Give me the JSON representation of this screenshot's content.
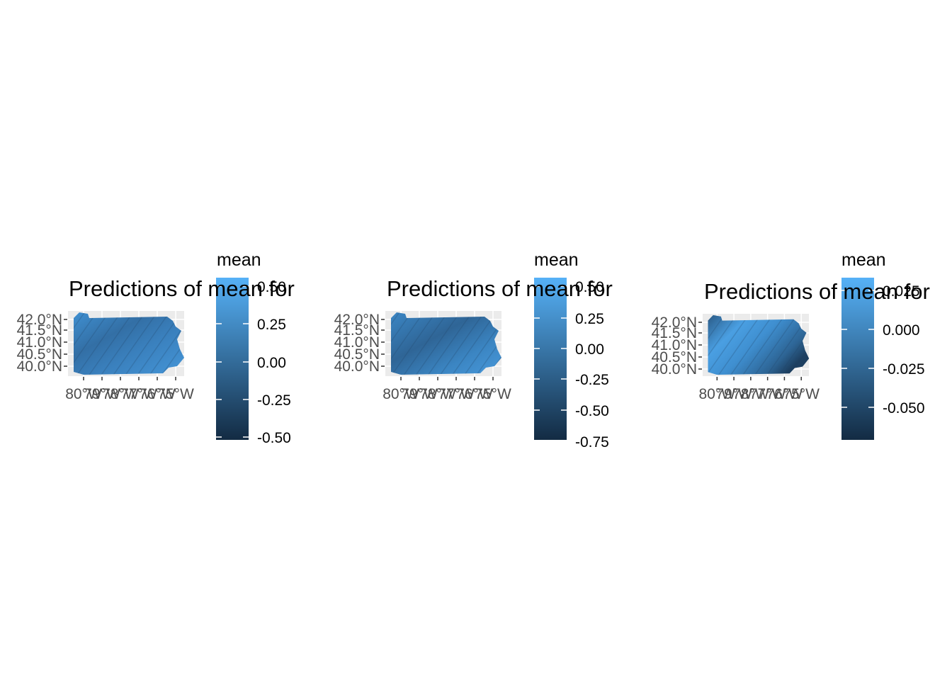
{
  "colors": {
    "gradient_high": "#56B1F7",
    "gradient_low": "#132B43",
    "panel_background": "#EBEBEB",
    "axis_text": "#4D4D4D"
  },
  "panels": [
    {
      "title": "Predictions of mean for",
      "legend_title": "mean",
      "legend_labels": [
        "0.50",
        "0.25",
        "0.00",
        "-0.25",
        "-0.50"
      ],
      "lat_labels": [
        "42.0°N",
        "41.5°N",
        "41.0°N",
        "40.5°N",
        "40.0°N"
      ],
      "lon_labels": [
        "80°W",
        "79°W",
        "78°W",
        "77°W",
        "76°W",
        "75°W"
      ]
    },
    {
      "title": "Predictions of mean for",
      "legend_title": "mean",
      "legend_labels": [
        "0.50",
        "0.25",
        "0.00",
        "-0.25",
        "-0.50",
        "-0.75"
      ],
      "lat_labels": [
        "42.0°N",
        "41.5°N",
        "41.0°N",
        "40.5°N",
        "40.0°N"
      ],
      "lon_labels": [
        "80°W",
        "79°W",
        "78°W",
        "77°W",
        "76°W",
        "75°W"
      ]
    },
    {
      "title": "Predictions of mean for",
      "legend_title": "mean",
      "legend_labels": [
        "0.025",
        "0.000",
        "-0.025",
        "-0.050"
      ],
      "lat_labels": [
        "42.0°N",
        "41.5°N",
        "41.0°N",
        "40.5°N",
        "40.0°N"
      ],
      "lon_labels": [
        "80°W",
        "79°W",
        "78°W",
        "77°W",
        "76°W",
        "75°W"
      ]
    }
  ]
}
